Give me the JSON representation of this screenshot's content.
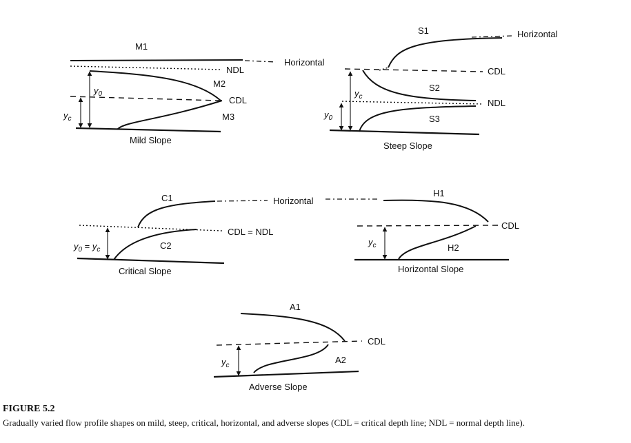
{
  "panels": {
    "mild": {
      "curve_upper": "M1",
      "curve_middle": "M2",
      "curve_lower": "M3",
      "horizontal": "Horizontal",
      "ndl": "NDL",
      "cdl": "CDL",
      "depth_normal": "y",
      "depth_normal_sub": "0",
      "depth_critical": "y",
      "depth_critical_sub": "c",
      "slope_label": "Mild Slope"
    },
    "steep": {
      "curve_upper": "S1",
      "curve_middle": "S2",
      "curve_lower": "S3",
      "horizontal": "Horizontal",
      "cdl": "CDL",
      "ndl": "NDL",
      "depth_critical": "y",
      "depth_critical_sub": "c",
      "depth_normal": "y",
      "depth_normal_sub": "0",
      "slope_label": "Steep Slope"
    },
    "critical": {
      "curve_upper": "C1",
      "curve_lower": "C2",
      "horizontal": "Horizontal",
      "cdl_ndl": "CDL = NDL",
      "depth_label_a": "y",
      "depth_label_a_sub": "0",
      "depth_equals": " = ",
      "depth_label_b": "y",
      "depth_label_b_sub": "c",
      "slope_label": "Critical Slope"
    },
    "horizontal": {
      "curve_upper": "H1",
      "curve_lower": "H2",
      "cdl": "CDL",
      "depth_critical": "y",
      "depth_critical_sub": "c",
      "slope_label": "Horizontal Slope"
    },
    "adverse": {
      "curve_upper": "A1",
      "curve_lower": "A2",
      "cdl": "CDL",
      "depth_critical": "y",
      "depth_critical_sub": "c",
      "slope_label": "Adverse Slope"
    }
  },
  "caption": {
    "title": "FIGURE 5.2",
    "text": "Gradually varied flow profile shapes on mild, steep, critical, horizontal, and adverse slopes (CDL = critical depth line; NDL = normal depth line)."
  }
}
